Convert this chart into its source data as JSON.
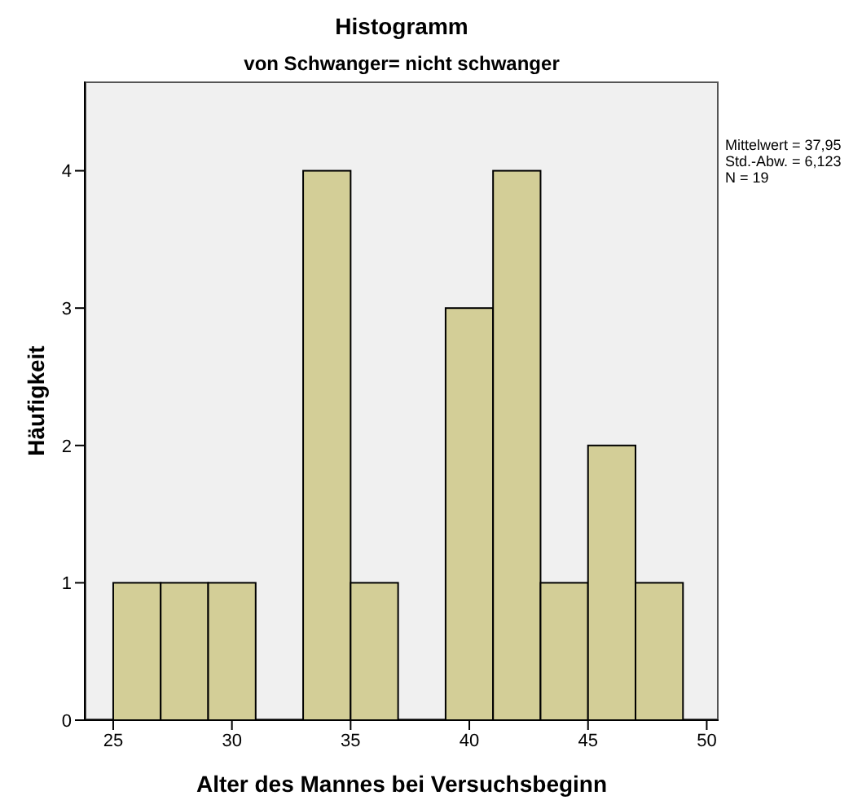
{
  "chart_data": {
    "type": "histogram",
    "title": "Histogramm",
    "subtitle": "von Schwanger= nicht schwanger",
    "xlabel": "Alter des Mannes bei Versuchsbeginn",
    "ylabel": "Häufigkeit",
    "bins": [
      25,
      27,
      29,
      31,
      33,
      35,
      37,
      39,
      41,
      43,
      45,
      47,
      49
    ],
    "values": [
      1,
      1,
      1,
      0,
      4,
      1,
      0,
      3,
      4,
      1,
      2,
      1
    ],
    "color": "#d3ce97",
    "xlim": [
      23.8,
      50.5
    ],
    "xticks": [
      25,
      30,
      35,
      40,
      45,
      50
    ],
    "ylim": [
      0,
      4.65
    ],
    "yticks": [
      0,
      1,
      2,
      3,
      4
    ],
    "annotations": [
      "Mittelwert = 37,95",
      "Std.-Abw. = 6,123",
      "N = 19"
    ]
  }
}
